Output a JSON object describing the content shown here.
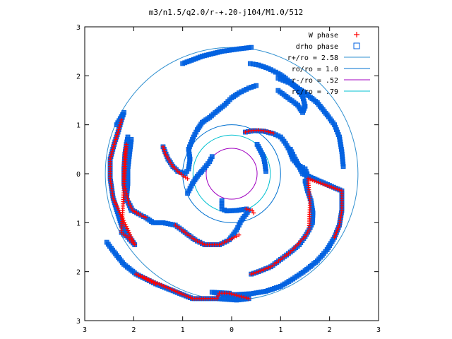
{
  "chart_data": {
    "type": "scatter",
    "title": "m3/n1.5/q2.0/r-+.20-j104/M1.0/512",
    "xlim": [
      -3,
      3
    ],
    "ylim": [
      -3,
      3
    ],
    "x_tick_labels": [
      "3",
      "2",
      "1",
      "0",
      "1",
      "2",
      "3"
    ],
    "y_tick_labels": [
      "3",
      "2",
      "1",
      "0",
      "1",
      "2",
      "3"
    ],
    "grid": false,
    "legend_position": "top-right",
    "legend": [
      {
        "label": "W phase",
        "kind": "plus",
        "color": "#ff0000"
      },
      {
        "label": "drho phase",
        "kind": "square",
        "color": "#0060e0"
      },
      {
        "label": "r+/ro = 2.58",
        "kind": "line",
        "color": "#3090d0"
      },
      {
        "label": "ro/ro = 1.0",
        "kind": "line",
        "color": "#0070d0"
      },
      {
        "label": "r-/ro = .52",
        "kind": "line",
        "color": "#a000c0"
      },
      {
        "label": "rc/ro = .79",
        "kind": "line",
        "color": "#00c0d0"
      }
    ],
    "circles": [
      {
        "label": "r+/ro = 2.58",
        "r": 2.58,
        "color": "#3090d0"
      },
      {
        "label": "ro/ro = 1.0",
        "r": 1.0,
        "color": "#0070d0"
      },
      {
        "label": "r-/ro = .52",
        "r": 0.52,
        "color": "#a000c0"
      },
      {
        "label": "rc/ro = .79",
        "r": 0.79,
        "color": "#00c0d0"
      }
    ],
    "series": [
      {
        "name": "drho phase",
        "marker": "square",
        "color": "#0060e0",
        "arms": [
          [
            [
              0.28,
              0.85
            ],
            [
              0.45,
              0.88
            ],
            [
              0.65,
              0.87
            ],
            [
              0.85,
              0.82
            ],
            [
              1.0,
              0.75
            ],
            [
              1.1,
              0.62
            ],
            [
              1.18,
              0.48
            ],
            [
              1.25,
              0.3
            ],
            [
              1.35,
              0.18
            ],
            [
              1.5,
              0.1
            ],
            [
              1.56,
              -0.05
            ],
            [
              1.5,
              -0.15
            ],
            [
              1.55,
              -0.35
            ],
            [
              1.62,
              -0.55
            ],
            [
              1.66,
              -0.8
            ],
            [
              1.65,
              -1.0
            ],
            [
              1.58,
              -1.15
            ],
            [
              1.5,
              -1.28
            ],
            [
              1.38,
              -1.45
            ],
            [
              1.2,
              -1.6
            ],
            [
              1.0,
              -1.75
            ],
            [
              0.8,
              -1.9
            ],
            [
              0.55,
              -2.0
            ],
            [
              0.4,
              -2.05
            ]
          ],
          [
            [
              0.52,
              0.6
            ],
            [
              0.65,
              0.35
            ],
            [
              0.68,
              0.2
            ],
            [
              0.7,
              0.05
            ]
          ],
          [
            [
              0.3,
              -0.72
            ],
            [
              0.1,
              -0.75
            ],
            [
              -0.1,
              -0.76
            ],
            [
              -0.2,
              -0.72
            ],
            [
              -0.2,
              -0.55
            ]
          ],
          [
            [
              0.35,
              -0.75
            ],
            [
              0.2,
              -0.95
            ],
            [
              0.1,
              -1.15
            ],
            [
              -0.05,
              -1.35
            ],
            [
              -0.25,
              -1.45
            ],
            [
              -0.55,
              -1.45
            ],
            [
              -0.75,
              -1.35
            ],
            [
              -0.95,
              -1.2
            ],
            [
              -1.15,
              -1.05
            ],
            [
              -1.4,
              -1.0
            ],
            [
              -1.6,
              -1.0
            ],
            [
              -1.75,
              -0.9
            ],
            [
              -1.9,
              -0.82
            ],
            [
              -2.02,
              -0.75
            ],
            [
              -2.1,
              -0.6
            ]
          ],
          [
            [
              -2.05,
              -0.75
            ],
            [
              -2.15,
              -0.5
            ],
            [
              -2.2,
              -0.2
            ],
            [
              -2.2,
              0.1
            ],
            [
              -2.18,
              0.4
            ],
            [
              -2.15,
              0.6
            ],
            [
              -2.12,
              0.75
            ],
            [
              -2.05,
              0.7
            ],
            [
              -2.08,
              0.45
            ],
            [
              -2.12,
              0.1
            ],
            [
              -2.12,
              -0.2
            ],
            [
              -2.15,
              -0.55
            ]
          ],
          [
            [
              -2.25,
              -1.2
            ],
            [
              -2.12,
              -1.3
            ],
            [
              -1.98,
              -1.45
            ],
            [
              -2.25,
              -1.05
            ],
            [
              -2.42,
              -0.5
            ],
            [
              -2.48,
              -0.1
            ],
            [
              -2.48,
              0.3
            ],
            [
              -2.4,
              0.6
            ],
            [
              -2.32,
              0.85
            ],
            [
              -2.25,
              1.1
            ],
            [
              -2.2,
              1.25
            ],
            [
              -2.35,
              1.0
            ]
          ],
          [
            [
              -1.4,
              0.55
            ],
            [
              -1.3,
              0.3
            ],
            [
              -1.2,
              0.15
            ],
            [
              -1.1,
              0.05
            ],
            [
              -0.95,
              0.0
            ],
            [
              -0.88,
              0.1
            ],
            [
              -0.85,
              0.3
            ],
            [
              -0.88,
              0.5
            ],
            [
              -0.78,
              0.75
            ],
            [
              -0.7,
              0.9
            ],
            [
              -0.6,
              1.05
            ],
            [
              -0.45,
              1.15
            ],
            [
              -0.3,
              1.28
            ],
            [
              -0.15,
              1.4
            ],
            [
              0.0,
              1.55
            ],
            [
              0.15,
              1.65
            ],
            [
              0.35,
              1.75
            ],
            [
              0.5,
              1.8
            ]
          ],
          [
            [
              -0.9,
              -0.4
            ],
            [
              -0.8,
              -0.2
            ],
            [
              -0.7,
              -0.05
            ],
            [
              -0.55,
              0.12
            ],
            [
              -0.45,
              0.25
            ],
            [
              -0.4,
              0.35
            ]
          ],
          [
            [
              0.38,
              2.25
            ],
            [
              0.55,
              2.22
            ],
            [
              0.75,
              2.15
            ],
            [
              0.95,
              2.05
            ],
            [
              1.1,
              1.95
            ],
            [
              1.3,
              1.78
            ],
            [
              1.45,
              1.58
            ],
            [
              1.5,
              1.38
            ],
            [
              1.45,
              1.25
            ],
            [
              1.35,
              1.4
            ],
            [
              1.15,
              1.55
            ],
            [
              0.95,
              1.7
            ]
          ],
          [
            [
              0.95,
              1.95
            ],
            [
              1.2,
              1.85
            ],
            [
              1.5,
              1.65
            ],
            [
              1.75,
              1.45
            ],
            [
              1.95,
              1.2
            ],
            [
              2.1,
              1.0
            ],
            [
              2.2,
              0.75
            ],
            [
              2.25,
              0.45
            ],
            [
              2.28,
              0.15
            ]
          ],
          [
            [
              -1.0,
              2.25
            ],
            [
              -0.6,
              2.4
            ],
            [
              -0.2,
              2.5
            ],
            [
              0.15,
              2.55
            ],
            [
              0.4,
              2.58
            ]
          ],
          [
            [
              1.2,
              0.5
            ],
            [
              1.3,
              0.3
            ],
            [
              1.45,
              0.0
            ],
            [
              2.25,
              -0.35
            ],
            [
              2.25,
              -0.75
            ],
            [
              2.2,
              -1.05
            ],
            [
              2.1,
              -1.3
            ],
            [
              1.95,
              -1.55
            ],
            [
              1.75,
              -1.78
            ],
            [
              1.5,
              -1.98
            ],
            [
              1.25,
              -2.15
            ],
            [
              1.0,
              -2.3
            ],
            [
              0.7,
              -2.4
            ],
            [
              0.4,
              -2.45
            ],
            [
              0.05,
              -2.47
            ],
            [
              -0.25,
              -2.44
            ]
          ],
          [
            [
              -2.55,
              -1.4
            ],
            [
              -2.4,
              -1.6
            ],
            [
              -2.2,
              -1.85
            ],
            [
              -1.95,
              -2.05
            ],
            [
              -1.55,
              -2.25
            ],
            [
              -0.8,
              -2.55
            ],
            [
              -0.3,
              -2.55
            ],
            [
              0.1,
              -2.58
            ],
            [
              0.35,
              -2.55
            ],
            [
              -0.4,
              -2.42
            ],
            [
              -0.05,
              -2.44
            ]
          ]
        ]
      },
      {
        "name": "W phase",
        "marker": "plus",
        "color": "#ff0000",
        "arms": [
          [
            [
              0.28,
              0.85
            ],
            [
              0.4,
              0.88
            ],
            [
              0.55,
              0.89
            ],
            [
              0.7,
              0.87
            ],
            [
              0.85,
              0.83
            ]
          ],
          [
            [
              -1.4,
              0.55
            ],
            [
              -1.35,
              0.4
            ],
            [
              -1.28,
              0.28
            ],
            [
              -1.2,
              0.15
            ],
            [
              -1.1,
              0.05
            ],
            [
              -0.98,
              -0.05
            ],
            [
              -0.9,
              -0.1
            ]
          ],
          [
            [
              0.3,
              -0.72
            ],
            [
              0.42,
              -0.75
            ],
            [
              0.45,
              -0.8
            ]
          ],
          [
            [
              -1.75,
              -0.9
            ],
            [
              -1.9,
              -0.82
            ],
            [
              -2.02,
              -0.75
            ],
            [
              -2.1,
              -0.6
            ],
            [
              -2.15,
              -0.4
            ],
            [
              -2.2,
              -0.2
            ],
            [
              -2.2,
              0.1
            ],
            [
              -2.18,
              0.4
            ],
            [
              -2.15,
              0.6
            ],
            [
              -2.25,
              -1.2
            ],
            [
              -2.12,
              -1.3
            ],
            [
              -1.98,
              -1.45
            ],
            [
              -2.42,
              -0.5
            ],
            [
              -2.48,
              -0.1
            ],
            [
              -2.48,
              0.3
            ],
            [
              -2.4,
              0.6
            ],
            [
              -2.32,
              0.85
            ],
            [
              -2.25,
              1.1
            ]
          ],
          [
            [
              0.15,
              -1.25
            ],
            [
              -0.05,
              -1.35
            ],
            [
              -0.25,
              -1.45
            ],
            [
              -0.55,
              -1.45
            ],
            [
              -0.75,
              -1.35
            ],
            [
              -0.95,
              -1.2
            ],
            [
              -1.15,
              -1.05
            ]
          ],
          [
            [
              -1.55,
              -2.25
            ],
            [
              -1.95,
              -2.05
            ],
            [
              -0.8,
              -2.55
            ],
            [
              -0.3,
              -2.55
            ],
            [
              -0.25,
              -2.44
            ],
            [
              -0.05,
              -2.44
            ],
            [
              0.05,
              -2.47
            ],
            [
              0.35,
              -2.55
            ]
          ],
          [
            [
              0.4,
              -2.05
            ],
            [
              0.55,
              -2.0
            ],
            [
              0.8,
              -1.9
            ],
            [
              1.0,
              -1.75
            ],
            [
              1.2,
              -1.6
            ],
            [
              1.5,
              -1.28
            ],
            [
              1.58,
              -1.15
            ],
            [
              1.6,
              -0.6
            ],
            [
              1.56,
              -0.1
            ],
            [
              2.25,
              -0.35
            ],
            [
              2.25,
              -0.75
            ],
            [
              2.2,
              -1.05
            ],
            [
              2.1,
              -1.3
            ]
          ]
        ]
      }
    ]
  }
}
